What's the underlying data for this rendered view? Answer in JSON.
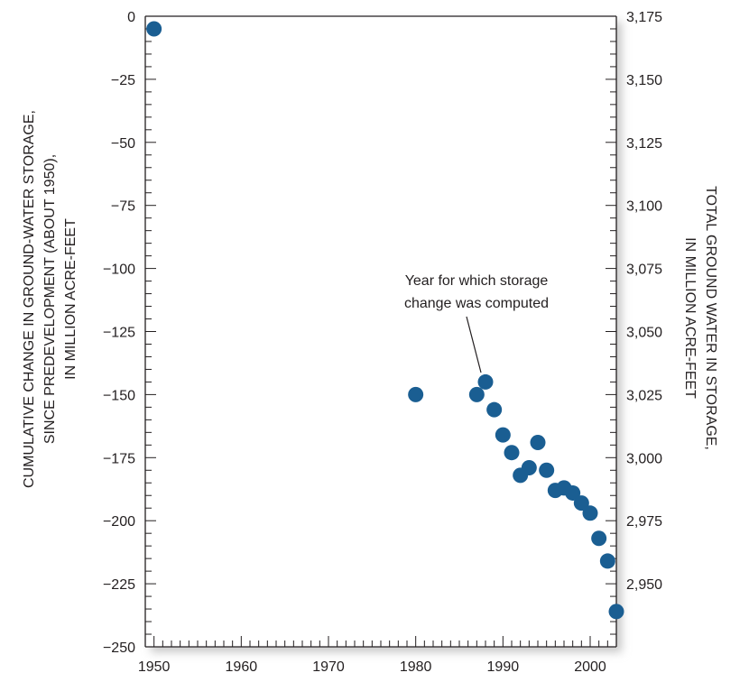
{
  "chart_data": {
    "type": "scatter",
    "title": "",
    "ylabel_left": [
      "CUMULATIVE CHANGE IN GROUND-WATER STORAGE,",
      "SINCE PREDEVELOPMENT (ABOUT 1950),",
      "IN MILLION ACRE-FEET"
    ],
    "ylabel_right": [
      "TOTAL GROUND WATER IN STORAGE,",
      "IN MILLION ACRE-FEET"
    ],
    "xlim": [
      1949,
      2003
    ],
    "ylim_left": [
      -250,
      0
    ],
    "ylim_right": [
      2925,
      3175
    ],
    "x_tick_labels": [
      "1950",
      "1960",
      "1970",
      "1980",
      "1990",
      "2000"
    ],
    "x_ticks": [
      1950,
      1960,
      1970,
      1980,
      1990,
      2000
    ],
    "y_left_tick_labels": [
      "0",
      "−25",
      "−50",
      "−75",
      "−100",
      "−125",
      "−150",
      "−175",
      "−200",
      "−225",
      "−250"
    ],
    "y_left_ticks": [
      0,
      -25,
      -50,
      -75,
      -100,
      -125,
      -150,
      -175,
      -200,
      -225,
      -250
    ],
    "y_right_tick_labels": [
      "3,175",
      "3,150",
      "3,125",
      "3,100",
      "3,075",
      "3,050",
      "3,025",
      "3,000",
      "2,975",
      "2,950"
    ],
    "y_right_ticks": [
      3175,
      3150,
      3125,
      3100,
      3075,
      3050,
      3025,
      3000,
      2975,
      2950
    ],
    "points": [
      {
        "x": 1950,
        "y": -5
      },
      {
        "x": 1980,
        "y": -150
      },
      {
        "x": 1987,
        "y": -150
      },
      {
        "x": 1988,
        "y": -145
      },
      {
        "x": 1989,
        "y": -156
      },
      {
        "x": 1990,
        "y": -166
      },
      {
        "x": 1991,
        "y": -173
      },
      {
        "x": 1992,
        "y": -182
      },
      {
        "x": 1993,
        "y": -179
      },
      {
        "x": 1994,
        "y": -169
      },
      {
        "x": 1995,
        "y": -180
      },
      {
        "x": 1996,
        "y": -188
      },
      {
        "x": 1997,
        "y": -187
      },
      {
        "x": 1998,
        "y": -189
      },
      {
        "x": 1999,
        "y": -193
      },
      {
        "x": 2000,
        "y": -197
      },
      {
        "x": 2001,
        "y": -207
      },
      {
        "x": 2002,
        "y": -216
      },
      {
        "x": 2003,
        "y": -236
      }
    ],
    "annotation": {
      "lines": [
        "Year for which storage",
        "change was computed"
      ],
      "target_x": 1988,
      "target_y": -145
    },
    "grid": false,
    "legend": "none"
  },
  "colors": {
    "marker": "#1a5e92",
    "axis": "#231f20",
    "shadow": "#c8c8c8"
  }
}
